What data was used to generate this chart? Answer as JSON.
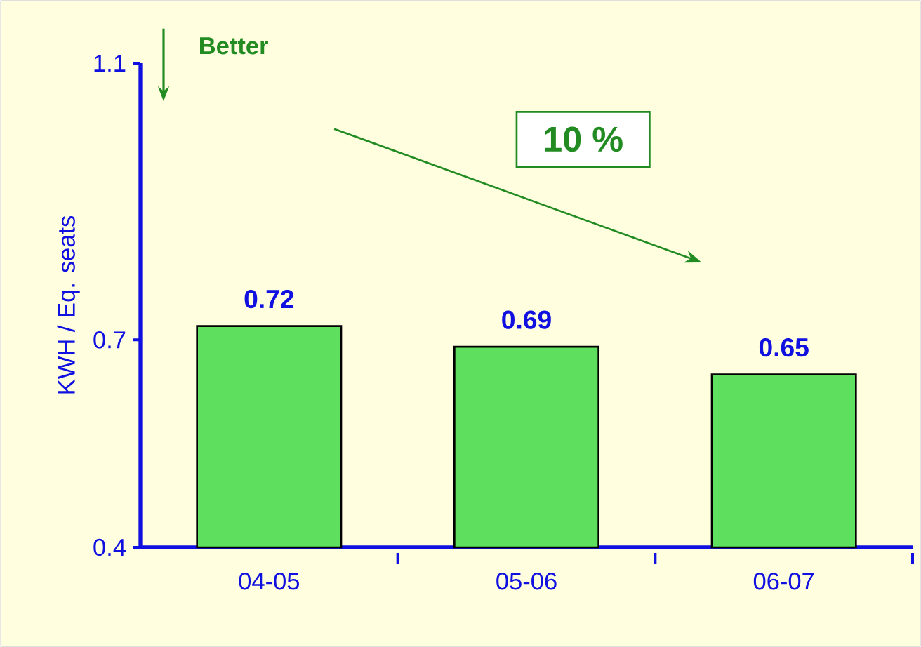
{
  "chart_data": {
    "type": "bar",
    "ylabel": "KWH / Eq. seats",
    "categories": [
      "04-05",
      "05-06",
      "06-07"
    ],
    "values": [
      0.72,
      0.69,
      0.65
    ],
    "color": "#5ee05e",
    "ylim": [
      0.4,
      1.1
    ],
    "yticks": [
      0.4,
      0.7,
      1.1
    ],
    "data_labels": true,
    "grid": false,
    "annotations": [
      "Better",
      "10 %"
    ]
  }
}
